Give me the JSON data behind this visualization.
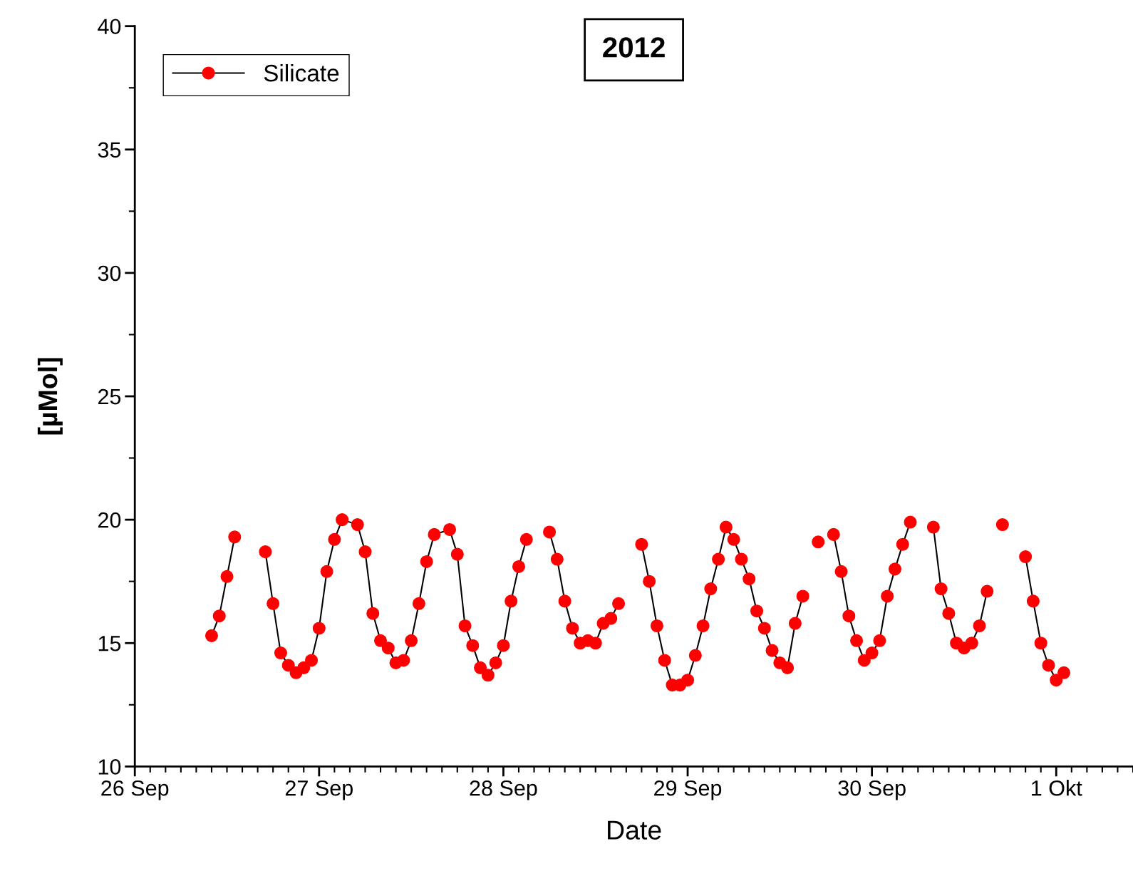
{
  "chart_data": {
    "type": "line",
    "title": "2012",
    "xlabel": "Date",
    "ylabel": "[µMol]",
    "xlim": [
      "2012-09-26T00:00",
      "2012-10-01T10:00"
    ],
    "xticks": [
      {
        "value": "2012-09-26T00:00",
        "label": "26 Sep"
      },
      {
        "value": "2012-09-27T00:00",
        "label": "27 Sep"
      },
      {
        "value": "2012-09-28T00:00",
        "label": "28 Sep"
      },
      {
        "value": "2012-09-29T00:00",
        "label": "29 Sep"
      },
      {
        "value": "2012-09-30T00:00",
        "label": "30 Sep"
      },
      {
        "value": "2012-10-01T00:00",
        "label": "1 Okt"
      }
    ],
    "ylim": [
      10,
      40
    ],
    "yticks": [
      10,
      15,
      20,
      25,
      30,
      35,
      40
    ],
    "grid": false,
    "legend": "top left",
    "marker": "circle",
    "line_style": "solid",
    "series": [
      {
        "name": "Silicate",
        "color": "#ff0000",
        "x": [
          "2012-09-26T10:00",
          "2012-09-26T11:00",
          "2012-09-26T12:00",
          "2012-09-26T13:00",
          "2012-09-26T14:00",
          "2012-09-26T17:00",
          "2012-09-26T18:00",
          "2012-09-26T19:00",
          "2012-09-26T20:00",
          "2012-09-26T21:00",
          "2012-09-26T22:00",
          "2012-09-26T23:00",
          "2012-09-27T00:00",
          "2012-09-27T01:00",
          "2012-09-27T02:00",
          "2012-09-27T03:00",
          "2012-09-27T05:00",
          "2012-09-27T06:00",
          "2012-09-27T07:00",
          "2012-09-27T08:00",
          "2012-09-27T09:00",
          "2012-09-27T10:00",
          "2012-09-27T11:00",
          "2012-09-27T12:00",
          "2012-09-27T13:00",
          "2012-09-27T14:00",
          "2012-09-27T15:00",
          "2012-09-27T17:00",
          "2012-09-27T18:00",
          "2012-09-27T19:00",
          "2012-09-27T20:00",
          "2012-09-27T21:00",
          "2012-09-27T22:00",
          "2012-09-27T23:00",
          "2012-09-28T00:00",
          "2012-09-28T01:00",
          "2012-09-28T02:00",
          "2012-09-28T03:00",
          "2012-09-28T04:00",
          "2012-09-28T06:00",
          "2012-09-28T07:00",
          "2012-09-28T08:00",
          "2012-09-28T09:00",
          "2012-09-28T10:00",
          "2012-09-28T11:00",
          "2012-09-28T12:00",
          "2012-09-28T13:00",
          "2012-09-28T14:00",
          "2012-09-28T15:00",
          "2012-09-28T16:00",
          "2012-09-28T18:00",
          "2012-09-28T19:00",
          "2012-09-28T20:00",
          "2012-09-28T21:00",
          "2012-09-28T22:00",
          "2012-09-28T23:00",
          "2012-09-29T00:00",
          "2012-09-29T01:00",
          "2012-09-29T02:00",
          "2012-09-29T03:00",
          "2012-09-29T04:00",
          "2012-09-29T05:00",
          "2012-09-29T06:00",
          "2012-09-29T07:00",
          "2012-09-29T08:00",
          "2012-09-29T09:00",
          "2012-09-29T10:00",
          "2012-09-29T11:00",
          "2012-09-29T12:00",
          "2012-09-29T13:00",
          "2012-09-29T14:00",
          "2012-09-29T15:00",
          "2012-09-29T16:00",
          "2012-09-29T17:00",
          "2012-09-29T18:00",
          "2012-09-29T19:00",
          "2012-09-29T20:00",
          "2012-09-29T21:00",
          "2012-09-29T22:00",
          "2012-09-29T23:00",
          "2012-09-30T00:00",
          "2012-09-30T01:00",
          "2012-09-30T02:00",
          "2012-09-30T03:00",
          "2012-09-30T04:00",
          "2012-09-30T05:00",
          "2012-09-30T06:00",
          "2012-09-30T08:00",
          "2012-09-30T09:00",
          "2012-09-30T10:00",
          "2012-09-30T11:00",
          "2012-09-30T12:00",
          "2012-09-30T13:00",
          "2012-09-30T14:00",
          "2012-09-30T15:00",
          "2012-09-30T16:00",
          "2012-09-30T17:00",
          "2012-09-30T18:00",
          "2012-09-30T20:00",
          "2012-09-30T21:00",
          "2012-09-30T22:00",
          "2012-09-30T23:00",
          "2012-10-01T00:00",
          "2012-10-01T01:00"
        ],
        "values": [
          15.3,
          16.1,
          17.7,
          19.3,
          null,
          18.7,
          16.6,
          14.6,
          14.1,
          13.8,
          14.0,
          14.3,
          15.6,
          17.9,
          19.2,
          20.0,
          19.8,
          18.7,
          16.2,
          15.1,
          14.8,
          14.2,
          14.3,
          15.1,
          16.6,
          18.3,
          19.4,
          19.6,
          18.6,
          15.7,
          14.9,
          14.0,
          13.7,
          14.2,
          14.9,
          16.7,
          18.1,
          19.2,
          null,
          19.5,
          18.4,
          16.7,
          15.6,
          15.0,
          15.1,
          15.0,
          15.8,
          16.0,
          16.6,
          null,
          19.0,
          17.5,
          15.7,
          14.3,
          13.3,
          13.3,
          13.5,
          14.5,
          15.7,
          17.2,
          18.4,
          19.7,
          19.2,
          18.4,
          17.6,
          16.3,
          15.6,
          14.7,
          14.2,
          14.0,
          15.8,
          16.9,
          null,
          19.1,
          null,
          19.4,
          17.9,
          16.1,
          15.1,
          14.3,
          14.6,
          15.1,
          16.9,
          18.0,
          19.0,
          19.9,
          null,
          19.7,
          17.2,
          16.2,
          15.0,
          14.8,
          15.0,
          15.7,
          17.1,
          null,
          19.8,
          null,
          18.5,
          16.7,
          15.0,
          14.1,
          13.5,
          13.8
        ]
      }
    ]
  }
}
